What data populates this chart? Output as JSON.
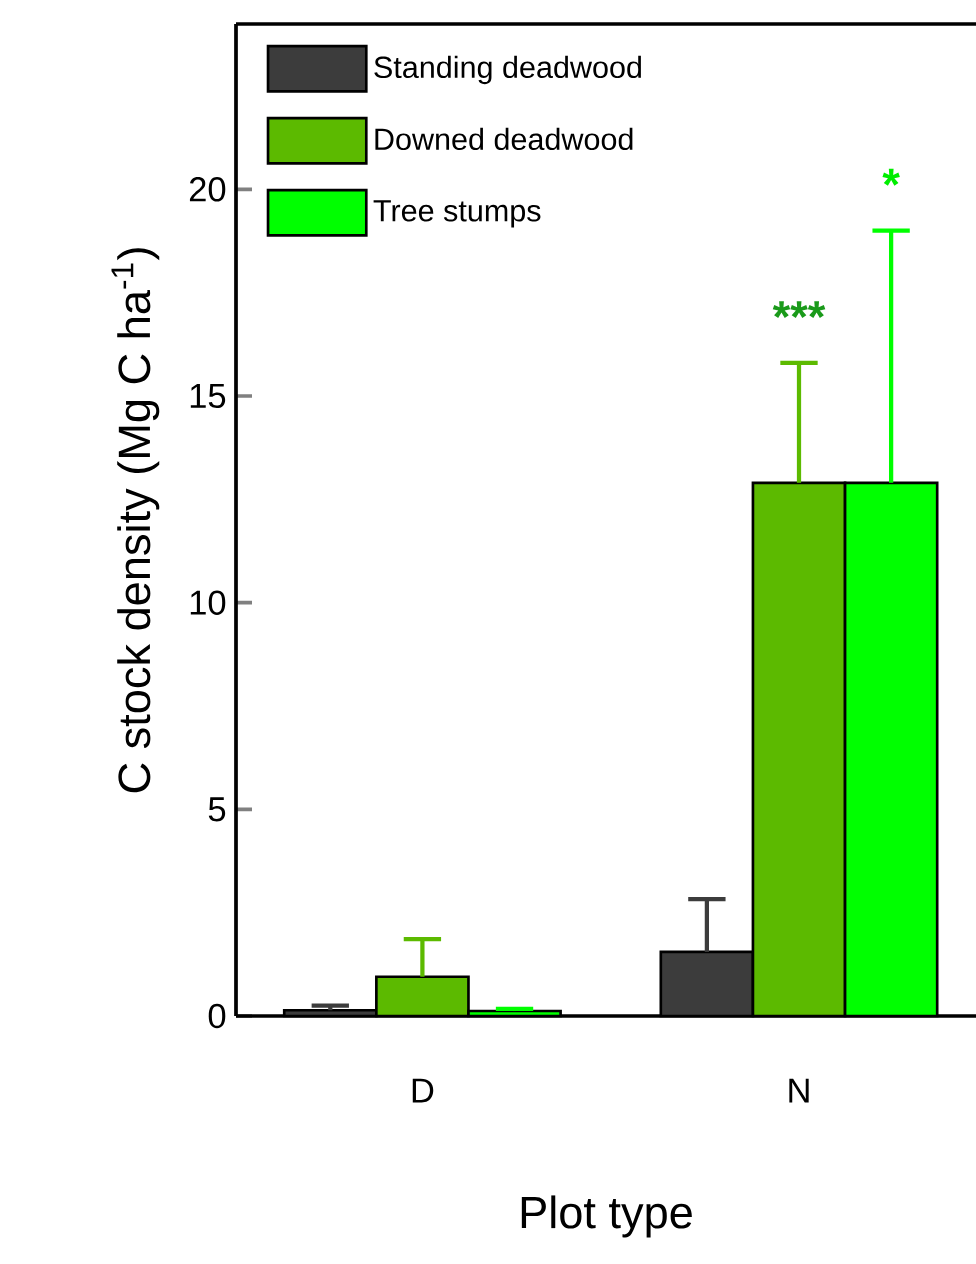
{
  "chart_data": {
    "type": "bar",
    "xlabel": "Plot type",
    "ylabel": "C stock density (Mg C ha$^{-1}$)",
    "categories": [
      "D",
      "N"
    ],
    "series": [
      {
        "name": "Standing deadwood",
        "color": "#3c3c3c",
        "values": [
          0.14,
          1.55
        ],
        "errors": [
          [
            0.14,
            0.25
          ],
          [
            1.55,
            2.83
          ]
        ]
      },
      {
        "name": "Downed deadwood",
        "color": "#5cba00",
        "values": [
          0.95,
          12.9
        ],
        "errors": [
          [
            0.95,
            1.86
          ],
          [
            12.9,
            15.8
          ]
        ]
      },
      {
        "name": "Tree stumps",
        "color": "#00ff00",
        "values": [
          0.12,
          12.9
        ],
        "errors": [
          [
            0.12,
            0.17
          ],
          [
            12.9,
            19.0
          ]
        ]
      }
    ],
    "ylim": [
      0,
      24
    ],
    "yticks": [
      0,
      5,
      10,
      15,
      20
    ],
    "legend": "top left",
    "annotations": [
      "***",
      "*"
    ]
  }
}
